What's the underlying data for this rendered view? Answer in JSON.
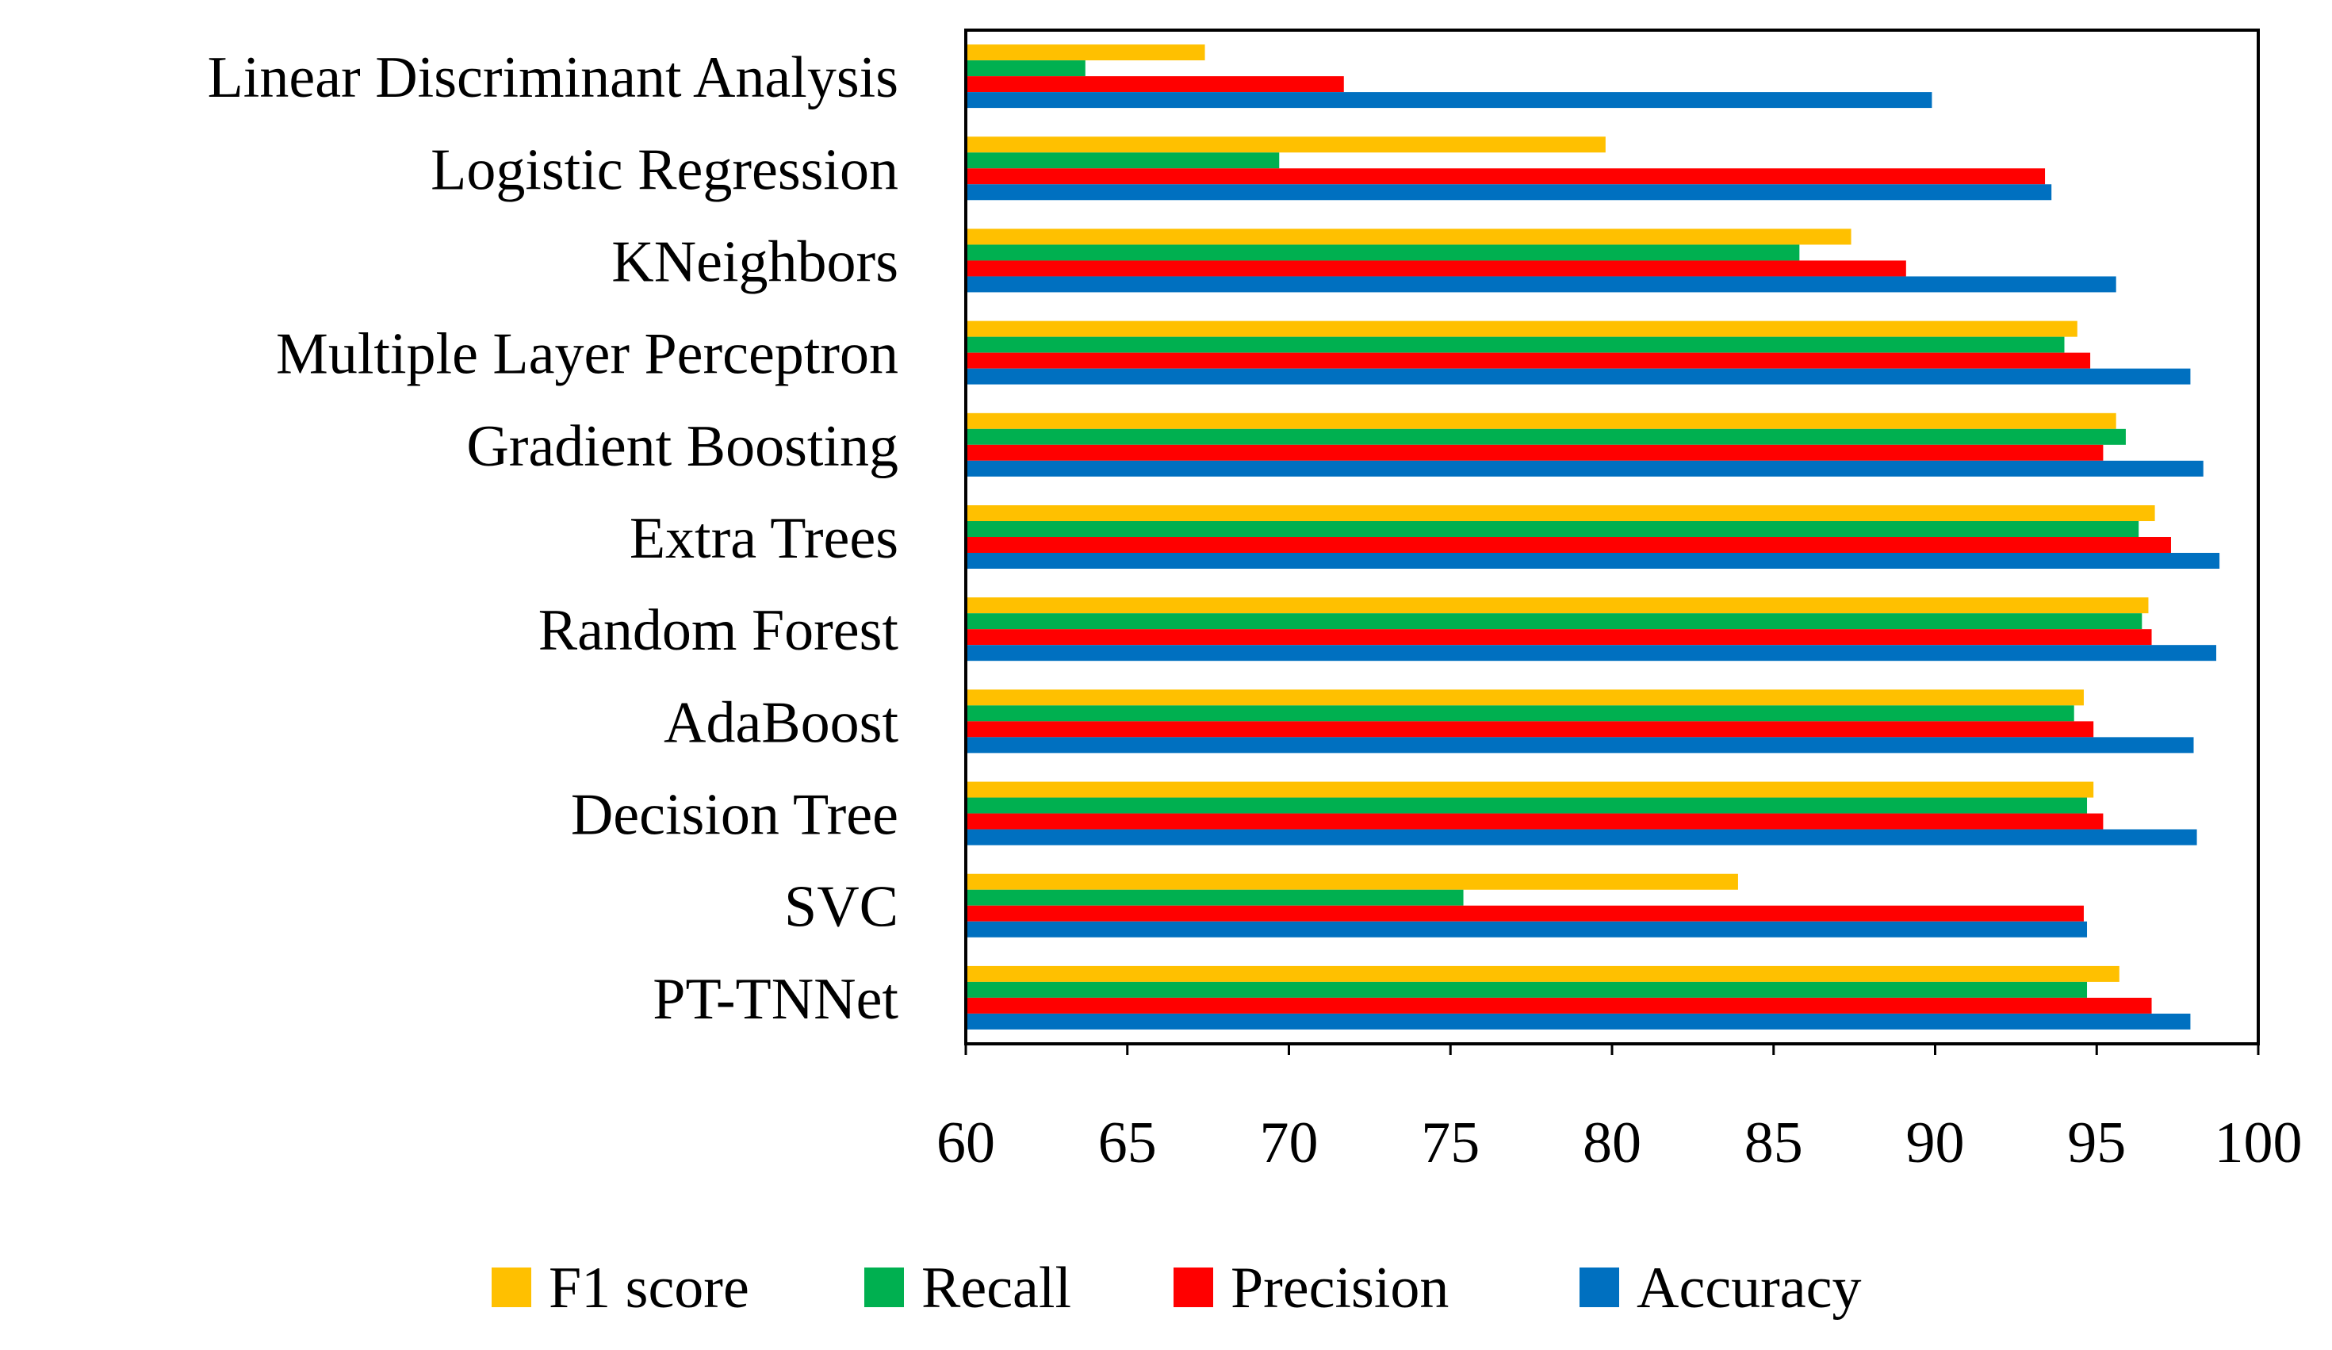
{
  "chart_data": {
    "type": "bar",
    "orientation": "horizontal",
    "title": "",
    "xlabel": "",
    "ylabel": "",
    "xlim": [
      60,
      100
    ],
    "xticks": [
      60,
      65,
      70,
      75,
      80,
      85,
      90,
      95,
      100
    ],
    "grid": false,
    "legend_position": "bottom",
    "categories": [
      "Linear Discriminant Analysis",
      "Logistic Regression",
      "KNeighbors",
      "Multiple Layer Perceptron",
      "Gradient Boosting",
      "Extra Trees",
      "Random Forest",
      "AdaBoost",
      "Decision Tree",
      "SVC",
      "PT-TNNet"
    ],
    "series": [
      {
        "name": "F1 score",
        "color": "#FFC000",
        "values": [
          67.4,
          79.8,
          87.4,
          94.4,
          95.6,
          96.8,
          96.6,
          94.6,
          94.9,
          83.9,
          95.7
        ]
      },
      {
        "name": "Recall",
        "color": "#00B050",
        "values": [
          63.7,
          69.7,
          85.8,
          94.0,
          95.9,
          96.3,
          96.4,
          94.3,
          94.7,
          75.4,
          94.7
        ]
      },
      {
        "name": "Precision",
        "color": "#FF0000",
        "values": [
          71.7,
          93.4,
          89.1,
          94.8,
          95.2,
          97.3,
          96.7,
          94.9,
          95.2,
          94.6,
          96.7
        ]
      },
      {
        "name": "Accuracy",
        "color": "#0070C0",
        "values": [
          89.9,
          93.6,
          95.6,
          97.9,
          98.3,
          98.8,
          98.7,
          98.0,
          98.1,
          94.7,
          97.9
        ]
      }
    ]
  }
}
